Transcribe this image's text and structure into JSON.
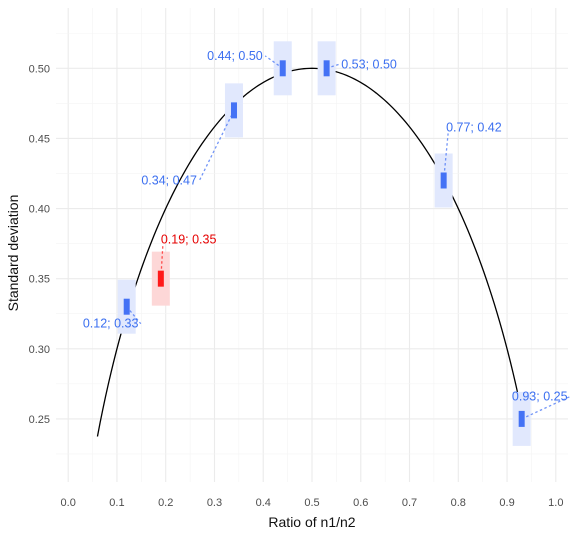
{
  "chart_data": {
    "type": "scatter",
    "title": "",
    "xlabel": "Ratio of n1/n2",
    "ylabel": "Standard deviation",
    "xlim": [
      -0.025,
      1.025
    ],
    "ylim": [
      0.205,
      0.543
    ],
    "x_ticks": [
      "0.0",
      "0.1",
      "0.2",
      "0.3",
      "0.4",
      "0.5",
      "0.6",
      "0.7",
      "0.8",
      "0.9",
      "1.0"
    ],
    "y_ticks": [
      "0.25",
      "0.30",
      "0.35",
      "0.40",
      "0.45",
      "0.50"
    ],
    "grid": true,
    "legend": "none",
    "curve": {
      "description_formula": "sqrt(r*(1-r))",
      "x_range": [
        0.06,
        0.94
      ],
      "color": "#000000"
    },
    "points": [
      {
        "x": 0.12,
        "y": 0.33,
        "label": "0.12; 0.33",
        "highlight": false,
        "label_dx": -0.09,
        "label_dy": -0.015,
        "label_anchor": "start"
      },
      {
        "x": 0.19,
        "y": 0.35,
        "label": "0.19; 0.35",
        "highlight": true,
        "label_dx": 0.0,
        "label_dy": 0.025,
        "label_anchor": "start"
      },
      {
        "x": 0.34,
        "y": 0.47,
        "label": "0.34; 0.47",
        "highlight": false,
        "label_dx": -0.19,
        "label_dy": -0.053,
        "label_anchor": "start"
      },
      {
        "x": 0.44,
        "y": 0.5,
        "label": "0.44; 0.50",
        "highlight": false,
        "label_dx": -0.155,
        "label_dy": 0.006,
        "label_anchor": "start"
      },
      {
        "x": 0.53,
        "y": 0.5,
        "label": "0.53; 0.50",
        "highlight": false,
        "label_dx": 0.03,
        "label_dy": 0.0,
        "label_anchor": "start"
      },
      {
        "x": 0.77,
        "y": 0.42,
        "label": "0.77; 0.42",
        "highlight": false,
        "label_dx": 0.005,
        "label_dy": 0.035,
        "label_anchor": "start"
      },
      {
        "x": 0.93,
        "y": 0.25,
        "label": "0.93; 0.25",
        "highlight": false,
        "label_dx": -0.02,
        "label_dy": 0.013,
        "label_anchor": "start"
      }
    ],
    "colors": {
      "point": "#4472f5",
      "point_band": "#e1e8fd",
      "label": "#3b6ff0",
      "highlight": "#ff1a1a",
      "highlight_band": "#fdd7d7",
      "highlight_label": "#e60000",
      "grid": "#ebebeb",
      "curve": "#000000"
    }
  }
}
